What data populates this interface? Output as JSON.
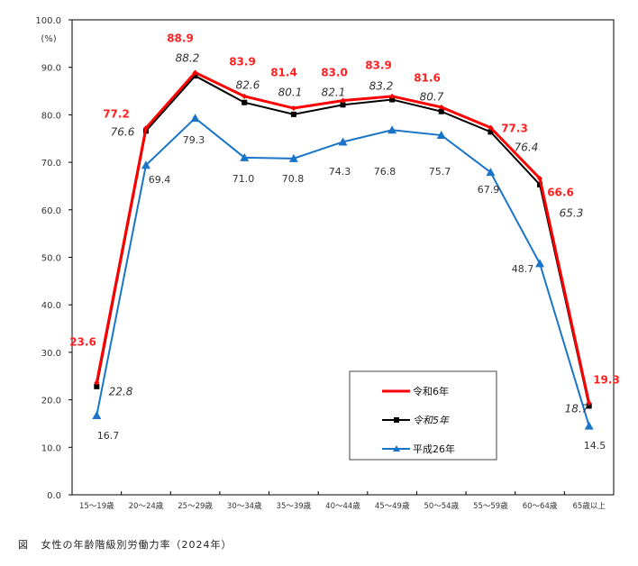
{
  "chart_data": {
    "type": "line",
    "title": "",
    "ylabel": "(%)",
    "xlabel": "",
    "ylim": [
      0,
      100
    ],
    "yticks": [
      "0.0",
      "10.0",
      "20.0",
      "30.0",
      "40.0",
      "50.0",
      "60.0",
      "70.0",
      "80.0",
      "90.0",
      "100.0"
    ],
    "categories": [
      "15～19歳",
      "20～24歳",
      "25～29歳",
      "30～34歳",
      "35～39歳",
      "40～44歳",
      "45～49歳",
      "50～54歳",
      "55～59歳",
      "60～64歳",
      "65歳以上"
    ],
    "legend_position": "lower-right",
    "series": [
      {
        "name": "令和6年",
        "color": "#ff0000",
        "marker": "diamond",
        "values": [
          23.6,
          77.2,
          88.9,
          83.9,
          81.4,
          83.0,
          83.9,
          81.6,
          77.3,
          66.6,
          19.3
        ],
        "labels": [
          "23.6",
          "77.2",
          "88.9",
          "83.9",
          "81.4",
          "83.0",
          "83.9",
          "81.6",
          "77.3",
          "66.6",
          "19.3"
        ]
      },
      {
        "name": "令和5年",
        "color": "#000000",
        "marker": "square",
        "values": [
          22.8,
          76.6,
          88.2,
          82.6,
          80.1,
          82.1,
          83.2,
          80.7,
          76.4,
          65.3,
          18.7
        ],
        "labels": [
          "22.8",
          "76.6",
          "88.2",
          "82.6",
          "80.1",
          "82.1",
          "83.2",
          "80.7",
          "76.4",
          "65.3",
          "18.7"
        ]
      },
      {
        "name": "平成26年",
        "color": "#1a75c8",
        "marker": "triangle",
        "values": [
          16.7,
          69.4,
          79.3,
          71.0,
          70.8,
          74.3,
          76.8,
          75.7,
          67.9,
          48.7,
          14.5
        ],
        "labels": [
          "16.7",
          "69.4",
          "79.3",
          "71.0",
          "70.8",
          "74.3",
          "76.8",
          "75.7",
          "67.9",
          "48.7",
          "14.5"
        ]
      }
    ]
  },
  "caption": {
    "label": "図",
    "text": "女性の年齢階級別労働力率（2024年）"
  }
}
